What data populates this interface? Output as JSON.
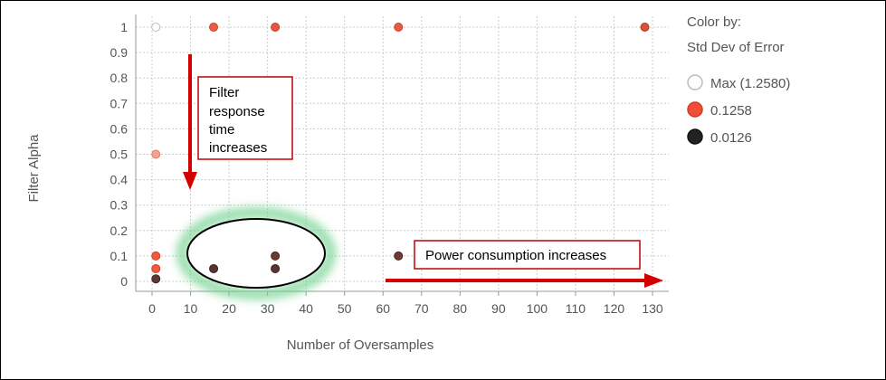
{
  "chart_data": {
    "type": "scatter",
    "xlabel": "Number of Oversamples",
    "ylabel": "Filter Alpha",
    "xlim": [
      0,
      130
    ],
    "ylim": [
      0,
      1
    ],
    "x_ticks": [
      0,
      10,
      20,
      30,
      40,
      50,
      60,
      70,
      80,
      90,
      100,
      110,
      120,
      130
    ],
    "y_ticks": [
      0,
      0.1,
      0.2,
      0.3,
      0.4,
      0.5,
      0.6,
      0.7,
      0.8,
      0.9,
      1
    ],
    "y_tick_labels": [
      "0",
      "0.1",
      "0.2",
      "0.3",
      "0.4",
      "0.5",
      "0.6",
      "0.7",
      "0.8",
      "0.9",
      "1"
    ],
    "grid": true,
    "color_by": {
      "title": "Color by:",
      "metric": "Std Dev of Error",
      "entries": [
        {
          "label": "Max (1.2580)",
          "color": "#ffffff",
          "stroke": "#bbbbbb"
        },
        {
          "label": "0.1258",
          "color": "#f04e37",
          "stroke": "#d23a25"
        },
        {
          "label": "0.0126",
          "color": "#222222",
          "stroke": "#111111"
        }
      ],
      "legend_position": "right"
    },
    "points": [
      {
        "x": 1,
        "y": 1,
        "color": "#ffffff",
        "stroke": "#bbbbbb"
      },
      {
        "x": 16,
        "y": 1,
        "color": "#ec5a43",
        "stroke": "#c9412c"
      },
      {
        "x": 32,
        "y": 1,
        "color": "#e85641",
        "stroke": "#c33d29"
      },
      {
        "x": 64,
        "y": 1,
        "color": "#e95a44",
        "stroke": "#c6432e"
      },
      {
        "x": 128,
        "y": 1,
        "color": "#d9503b",
        "stroke": "#b53a27"
      },
      {
        "x": 1,
        "y": 0.5,
        "color": "#f4a293",
        "stroke": "#e07d6c"
      },
      {
        "x": 1,
        "y": 0.1,
        "color": "#f05a40",
        "stroke": "#cc412a"
      },
      {
        "x": 1,
        "y": 0.05,
        "color": "#f05a40",
        "stroke": "#cc412a"
      },
      {
        "x": 1,
        "y": 0.01,
        "color": "#5c3a34",
        "stroke": "#3e2420"
      },
      {
        "x": 16,
        "y": 0.05,
        "color": "#5a3530",
        "stroke": "#3b201c"
      },
      {
        "x": 32,
        "y": 0.1,
        "color": "#6b3a31",
        "stroke": "#4a231d"
      },
      {
        "x": 32,
        "y": 0.05,
        "color": "#5a3530",
        "stroke": "#3b201c"
      },
      {
        "x": 64,
        "y": 0.1,
        "color": "#6b3a31",
        "stroke": "#4a231d"
      }
    ],
    "annotations": {
      "vertical_box_lines": [
        "Filter",
        "response",
        "time",
        "increases"
      ],
      "horizontal_box_text": "Power consumption  increases",
      "arrow_color": "#d40000",
      "highlight_color": "#6fd08c"
    }
  }
}
